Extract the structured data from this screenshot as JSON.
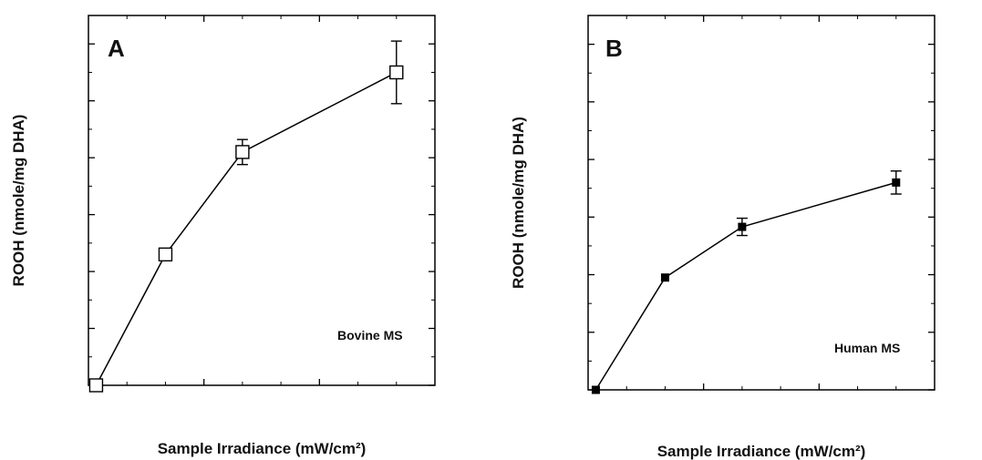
{
  "chart_data": [
    {
      "type": "line",
      "panel_label": "A",
      "annotation": "Bovine MS",
      "xlabel": "Sample Irradiance (mW/cm²)",
      "ylabel": "ROOH (nmole/mg DHA)",
      "xlim": [
        0,
        900
      ],
      "ylim": [
        0,
        650
      ],
      "xticks": [
        0,
        300,
        600,
        900
      ],
      "yticks": [
        0,
        100,
        200,
        300,
        400,
        500,
        600
      ],
      "marker": "open-square",
      "series": [
        {
          "x": [
            20,
            200,
            400,
            800
          ],
          "y": [
            0,
            230,
            410,
            550
          ],
          "err": [
            0,
            0,
            22,
            55
          ]
        }
      ]
    },
    {
      "type": "line",
      "panel_label": "B",
      "annotation": "Human MS",
      "xlabel": "Sample Irradiance (mW/cm²)",
      "ylabel": "ROOH (nmole/mg DHA)",
      "xlim": [
        0,
        900
      ],
      "ylim": [
        0,
        650
      ],
      "xticks": [
        0,
        300,
        600,
        900
      ],
      "yticks": [
        0,
        100,
        200,
        300,
        400,
        500,
        600
      ],
      "marker": "filled-square",
      "series": [
        {
          "x": [
            20,
            200,
            400,
            800
          ],
          "y": [
            0,
            195,
            283,
            360
          ],
          "err": [
            0,
            0,
            15,
            20
          ]
        }
      ]
    }
  ]
}
